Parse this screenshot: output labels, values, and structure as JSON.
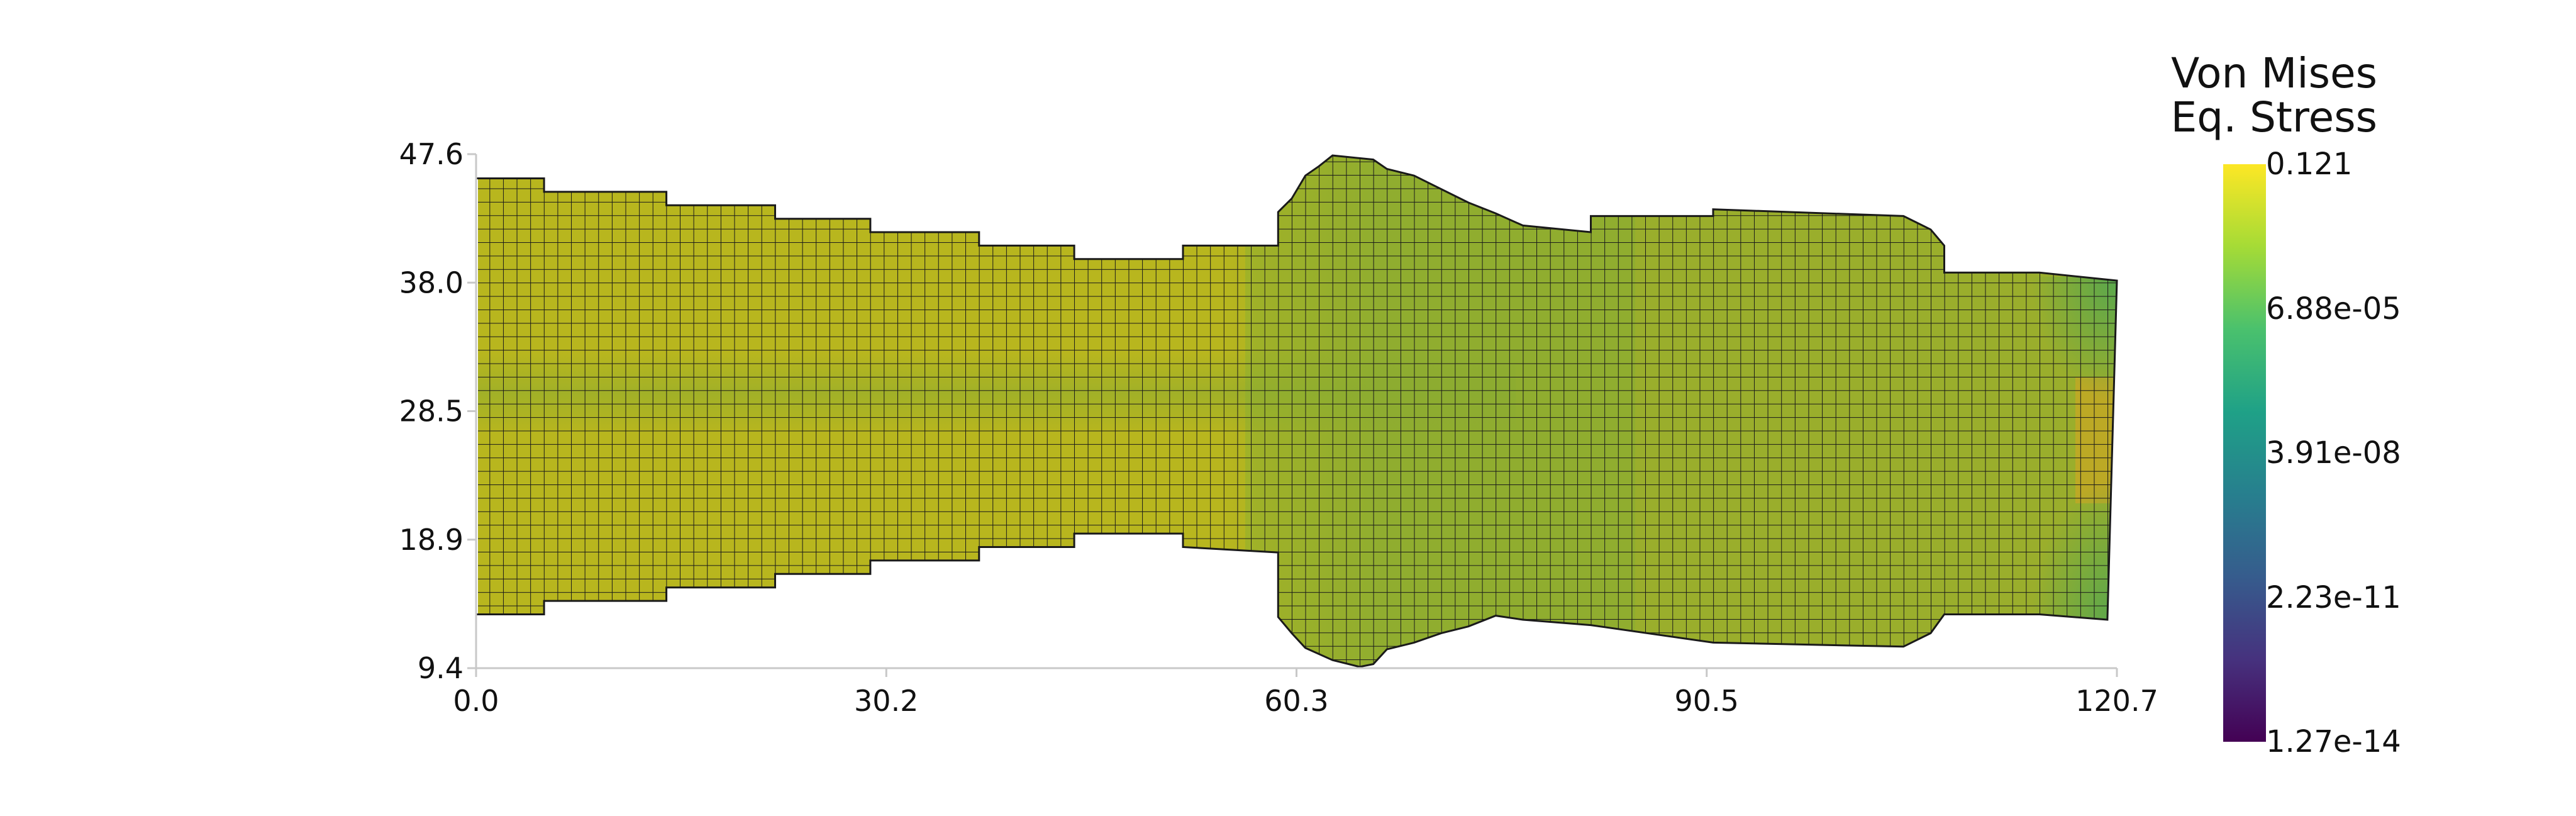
{
  "chart_data": {
    "type": "heatmap",
    "title": "",
    "xlabel": "",
    "ylabel": "",
    "x_ticks": [
      "0.0",
      "30.2",
      "60.3",
      "90.5",
      "120.7"
    ],
    "y_ticks": [
      "47.6",
      "38.0",
      "28.5",
      "18.9",
      "9.4"
    ],
    "xlim": [
      0.0,
      120.7
    ],
    "ylim": [
      9.4,
      47.6
    ],
    "grid": false,
    "mesh_cell_size": 1.0,
    "scalar_field": "Von Mises Eq. Stress",
    "color_scale": "log",
    "colormap": "viridis",
    "colorbar": {
      "title_line1": "Von Mises",
      "title_line2": "Eq. Stress",
      "placement": "right",
      "labels": [
        "0.121",
        "6.88e-05",
        "3.91e-08",
        "2.23e-11",
        "1.27e-14"
      ]
    },
    "shape_outline": {
      "top": [
        [
          0.0,
          45.8
        ],
        [
          5.0,
          45.8
        ],
        [
          5.0,
          44.8
        ],
        [
          14.0,
          44.8
        ],
        [
          14.0,
          43.8
        ],
        [
          22.0,
          43.8
        ],
        [
          22.0,
          42.8
        ],
        [
          29.0,
          42.8
        ],
        [
          29.0,
          41.8
        ],
        [
          37.0,
          41.8
        ],
        [
          37.0,
          40.8
        ],
        [
          44.0,
          40.8
        ],
        [
          44.0,
          39.8
        ],
        [
          52.0,
          39.8
        ],
        [
          52.0,
          40.8
        ],
        [
          59.0,
          40.8
        ],
        [
          59.0,
          43.3
        ],
        [
          60.0,
          44.3
        ],
        [
          61.0,
          46.0
        ],
        [
          62.0,
          46.7
        ],
        [
          63.0,
          47.5
        ],
        [
          64.0,
          47.4
        ],
        [
          66.0,
          47.2
        ],
        [
          67.0,
          46.5
        ],
        [
          69.0,
          46.0
        ],
        [
          71.0,
          45.0
        ],
        [
          73.0,
          44.0
        ],
        [
          75.0,
          43.2
        ],
        [
          77.0,
          42.3
        ],
        [
          82.0,
          41.8
        ],
        [
          82.0,
          43.0
        ],
        [
          91.0,
          43.0
        ],
        [
          91.0,
          43.5
        ],
        [
          105.0,
          43.0
        ],
        [
          107.0,
          42.0
        ],
        [
          108.0,
          40.8
        ],
        [
          108.0,
          38.8
        ],
        [
          115.0,
          38.8
        ],
        [
          120.7,
          38.2
        ]
      ],
      "bottom": [
        [
          120.7,
          38.2
        ],
        [
          120.0,
          13.0
        ],
        [
          115.0,
          13.4
        ],
        [
          108.0,
          13.4
        ],
        [
          107.0,
          12.0
        ],
        [
          105.0,
          11.0
        ],
        [
          91.0,
          11.3
        ],
        [
          82.0,
          12.6
        ],
        [
          77.0,
          13.0
        ],
        [
          75.0,
          13.3
        ],
        [
          73.0,
          12.5
        ],
        [
          71.0,
          12.0
        ],
        [
          69.0,
          11.3
        ],
        [
          67.0,
          10.8
        ],
        [
          66.0,
          9.7
        ],
        [
          65.0,
          9.5
        ],
        [
          63.0,
          10.0
        ],
        [
          61.0,
          10.9
        ],
        [
          60.0,
          12.0
        ],
        [
          59.0,
          13.2
        ],
        [
          59.0,
          18.0
        ],
        [
          52.0,
          18.4
        ],
        [
          52.0,
          19.4
        ],
        [
          44.0,
          19.4
        ],
        [
          44.0,
          18.4
        ],
        [
          37.0,
          18.4
        ],
        [
          37.0,
          17.4
        ],
        [
          29.0,
          17.4
        ],
        [
          29.0,
          16.4
        ],
        [
          22.0,
          16.4
        ],
        [
          22.0,
          15.4
        ],
        [
          14.0,
          15.4
        ],
        [
          14.0,
          14.4
        ],
        [
          5.0,
          14.4
        ],
        [
          5.0,
          13.4
        ],
        [
          0.0,
          13.4
        ],
        [
          0.0,
          45.8
        ]
      ]
    },
    "field_colors": {
      "left_section": "#b8b61e",
      "centerline_band": "#8fac2f",
      "right_section": "#9aae2c",
      "bulge": "#7fac36",
      "right_edge_warm": "#c4a824",
      "right_corners": "#4fa652",
      "mesh_line": "#1a1a1a"
    },
    "colorbar_stops": [
      "#fde725",
      "#a5db36",
      "#4ac16d",
      "#1fa187",
      "#277f8e",
      "#365c8d",
      "#46327e",
      "#440154"
    ]
  }
}
